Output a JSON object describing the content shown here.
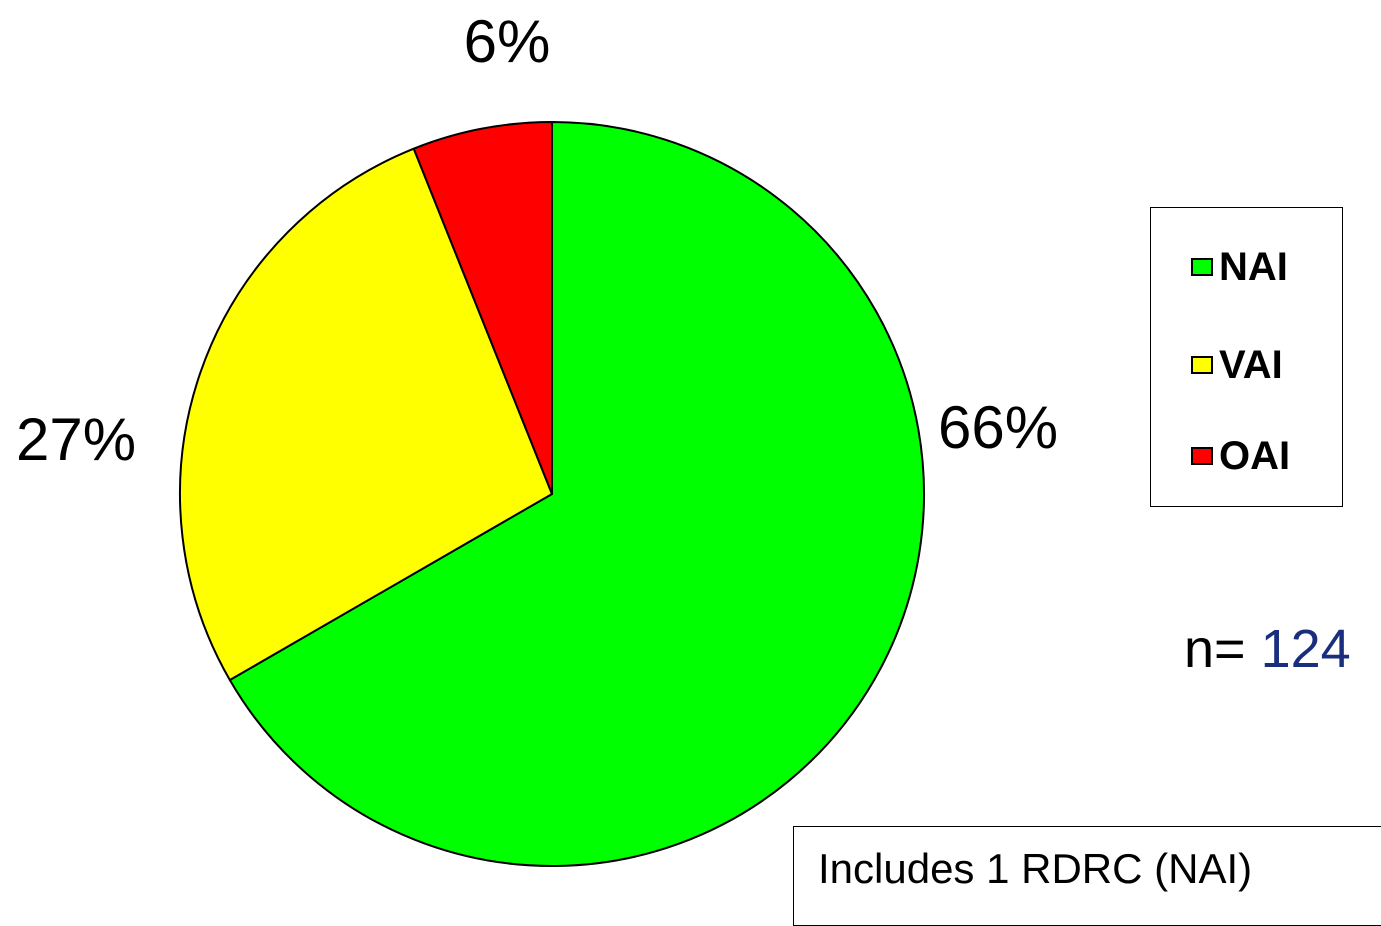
{
  "chart_data": {
    "type": "pie",
    "slices": [
      {
        "label": "NAI",
        "value": 66,
        "display": "66%",
        "color": "#00ff00"
      },
      {
        "label": "VAI",
        "value": 27,
        "display": "27%",
        "color": "#ffff00"
      },
      {
        "label": "OAI",
        "value": 6,
        "display": "6%",
        "color": "#ff0000"
      }
    ],
    "legend": {
      "position": "right",
      "entries": [
        "NAI",
        "VAI",
        "OAI"
      ]
    }
  },
  "sample": {
    "prefix": "n=",
    "value": "124"
  },
  "footnote": "Includes 1 RDRC (NAI)"
}
